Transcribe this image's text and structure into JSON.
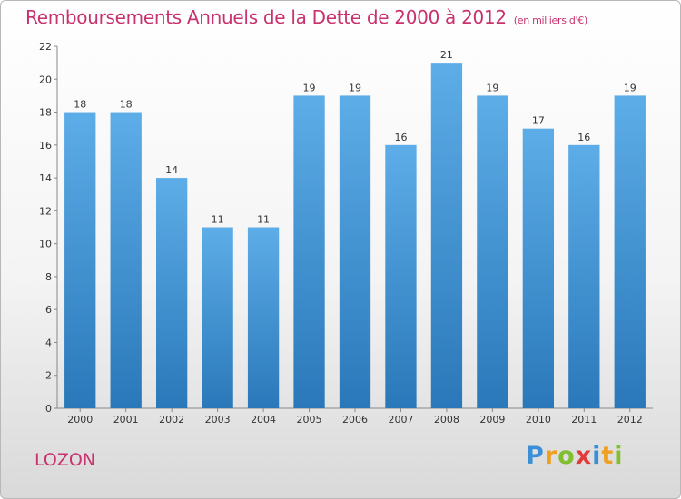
{
  "header": {
    "title": "Remboursements Annuels de la Dette de 2000 à 2012",
    "unit": "(en milliers d'€)"
  },
  "footer": {
    "place": "LOZON",
    "logo_letters": [
      "P",
      "r",
      "o",
      "x",
      "i",
      "t",
      "i"
    ],
    "logo_colors": [
      "#3a8fd6",
      "#f0a020",
      "#7fbf30",
      "#e03a3a",
      "#3a8fd6",
      "#f0a020",
      "#7fbf30"
    ]
  },
  "colors": {
    "bar_top": "#5dade8",
    "bar_bottom": "#2a78b9",
    "title": "#c8326e"
  },
  "chart_data": {
    "type": "bar",
    "categories": [
      "2000",
      "2001",
      "2002",
      "2003",
      "2004",
      "2005",
      "2006",
      "2007",
      "2008",
      "2009",
      "2010",
      "2011",
      "2012"
    ],
    "values": [
      18,
      18,
      14,
      11,
      11,
      19,
      19,
      16,
      21,
      19,
      17,
      16,
      19
    ],
    "ylim": [
      0,
      22
    ],
    "yticks": [
      0,
      2,
      4,
      6,
      8,
      10,
      12,
      14,
      16,
      18,
      20,
      22
    ],
    "grid": false
  }
}
